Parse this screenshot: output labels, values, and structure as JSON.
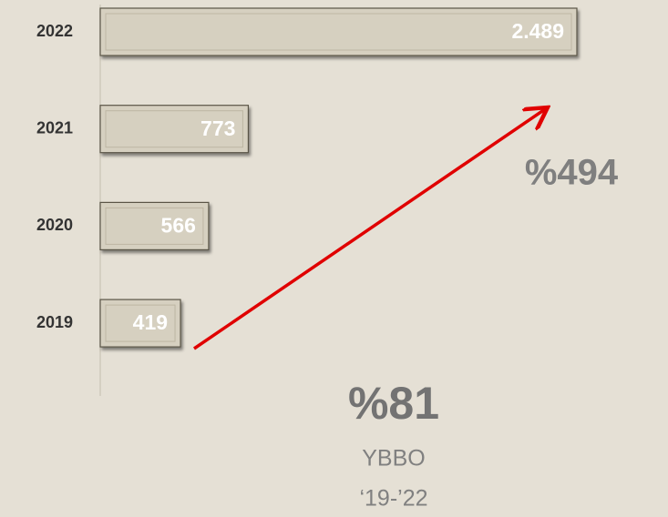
{
  "chart_data": {
    "type": "bar",
    "orientation": "horizontal",
    "categories": [
      "2022",
      "2021",
      "2020",
      "2019"
    ],
    "values": [
      2489,
      773,
      566,
      419
    ],
    "value_labels": [
      "2.489",
      "773",
      "566",
      "419"
    ],
    "color": "#d6d0c0",
    "annotations": [
      "%494",
      "%81",
      "YBBO",
      "‘19-’22"
    ]
  }
}
